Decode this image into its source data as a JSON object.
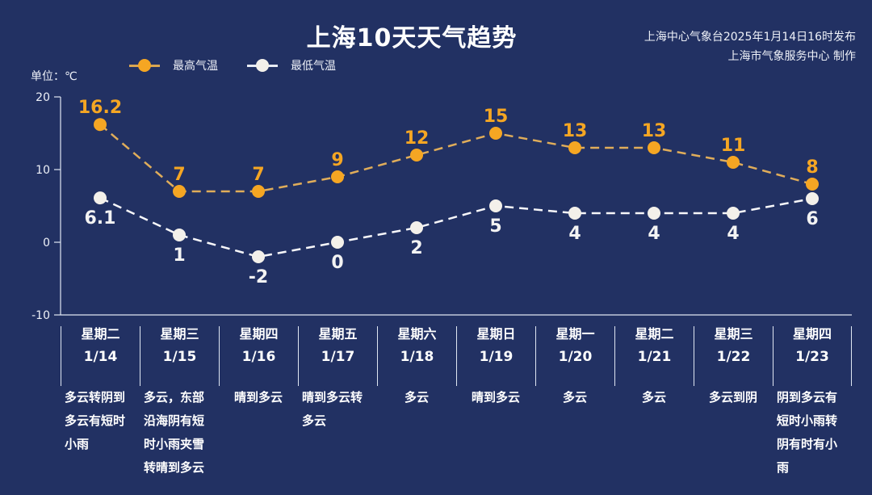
{
  "header": {
    "title": "上海10天天气趋势",
    "publisher_line1": "上海中心气象台2025年1月14日16时发布",
    "publisher_line2": "上海市气象服务中心 制作",
    "unit_label": "单位：℃"
  },
  "legend": {
    "high_label": "最高气温",
    "low_label": "最低气温"
  },
  "colors": {
    "background": "#223163",
    "high": "#f5a623",
    "high_line": "#e0ad5a",
    "low": "#f3f0ea",
    "axis": "#dfe6f2"
  },
  "y_axis": {
    "ticks": [
      "20",
      "10",
      "0",
      "-10"
    ]
  },
  "days": [
    {
      "weekday": "星期二",
      "date": "1/14",
      "desc": "多云转阴到多云有短时小雨",
      "high": "16.2",
      "low": "6.1"
    },
    {
      "weekday": "星期三",
      "date": "1/15",
      "desc": "多云，东部沿海阴有短时小雨夹雪转晴到多云",
      "high": "7",
      "low": "1"
    },
    {
      "weekday": "星期四",
      "date": "1/16",
      "desc": "晴到多云",
      "high": "7",
      "low": "-2"
    },
    {
      "weekday": "星期五",
      "date": "1/17",
      "desc": "晴到多云转多云",
      "high": "9",
      "low": "0"
    },
    {
      "weekday": "星期六",
      "date": "1/18",
      "desc": "多云",
      "high": "12",
      "low": "2"
    },
    {
      "weekday": "星期日",
      "date": "1/19",
      "desc": "晴到多云",
      "high": "15",
      "low": "5"
    },
    {
      "weekday": "星期一",
      "date": "1/20",
      "desc": "多云",
      "high": "13",
      "low": "4"
    },
    {
      "weekday": "星期二",
      "date": "1/21",
      "desc": "多云",
      "high": "13",
      "low": "4"
    },
    {
      "weekday": "星期三",
      "date": "1/22",
      "desc": "多云到阴",
      "high": "11",
      "low": "4"
    },
    {
      "weekday": "星期四",
      "date": "1/23",
      "desc": "阴到多云有短时小雨转阴有时有小雨",
      "high": "8",
      "low": "6"
    }
  ],
  "chart_data": {
    "type": "line",
    "title": "上海10天天气趋势",
    "xlabel": "",
    "ylabel": "单位：℃",
    "ylim": [
      -10,
      20
    ],
    "yticks": [
      -10,
      0,
      10,
      20
    ],
    "grid": false,
    "legend_position": "top-left",
    "categories": [
      "1/14",
      "1/15",
      "1/16",
      "1/17",
      "1/18",
      "1/19",
      "1/20",
      "1/21",
      "1/22",
      "1/23"
    ],
    "series": [
      {
        "name": "最高气温",
        "values": [
          16.2,
          7,
          7,
          9,
          12,
          15,
          13,
          13,
          11,
          8
        ],
        "color": "#f5a623",
        "style": "dashed"
      },
      {
        "name": "最低气温",
        "values": [
          6.1,
          1,
          -2,
          0,
          2,
          5,
          4,
          4,
          4,
          6
        ],
        "color": "#f3f0ea",
        "style": "dashed"
      }
    ]
  }
}
